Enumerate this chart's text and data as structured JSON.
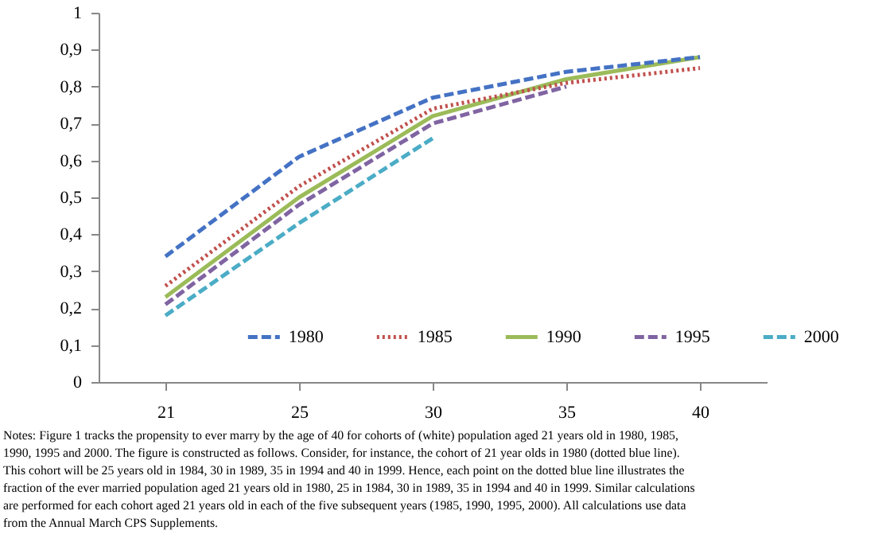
{
  "chart_data": {
    "type": "line",
    "categories": [
      "21",
      "25",
      "30",
      "35",
      "40"
    ],
    "series": [
      {
        "name": "1980",
        "color": "#4472c4",
        "line_style": "dashed",
        "values": [
          0.34,
          0.61,
          0.77,
          0.84,
          0.88
        ]
      },
      {
        "name": "1985",
        "color": "#c0504d",
        "line_style": "dotted",
        "values": [
          0.26,
          0.53,
          0.74,
          0.81,
          0.85
        ]
      },
      {
        "name": "1990",
        "color": "#9bbb59",
        "line_style": "solid",
        "values": [
          0.23,
          0.5,
          0.72,
          0.82,
          0.88
        ]
      },
      {
        "name": "1995",
        "color": "#8064a2",
        "line_style": "dashed",
        "values": [
          0.21,
          0.48,
          0.7,
          0.8,
          null
        ]
      },
      {
        "name": "2000",
        "color": "#4bacc6",
        "line_style": "dashed",
        "values": [
          0.18,
          0.43,
          0.66,
          null,
          null
        ]
      }
    ],
    "ylim": [
      0,
      1
    ],
    "yticks": [
      0,
      {
        "value": 0.1,
        "label": "0,1"
      },
      {
        "value": 0.2,
        "label": "0,2"
      },
      {
        "value": 0.3,
        "label": "0,3"
      },
      {
        "value": 0.4,
        "label": "0,4"
      },
      {
        "value": 0.5,
        "label": "0,5"
      },
      {
        "value": 0.6,
        "label": "0,6"
      },
      {
        "value": 0.7,
        "label": "0,7"
      },
      {
        "value": 0.8,
        "label": "0,8"
      },
      {
        "value": 0.9,
        "label": "0,9"
      },
      1
    ],
    "grid": false,
    "legend": "bottom",
    "marker": "none",
    "annotations": [
      "Notes: Figure 1 tracks the propensity to ever marry by the age of 40 for cohorts of (white) population aged 21 years old in 1980, 1985, 1990, 1995 and 2000. The figure is constructed as follows. Consider, for instance, the cohort of 21 year olds in 1980 (dotted blue line). This cohort will be 25 years old in 1984, 30 in 1989, 35 in 1994 and 40 in 1999. Hence, each point on the dotted blue line illustrates the fraction of the ever married population aged 21 years old in 1980, 25 in 1984, 30 in 1989, 35 in 1994 and 40 in 1999. Similar calculations are performed for each cohort aged 21 years old in each of the five subsequent years (1985, 1990, 1995, 2000). All calculations use data from the Annual March CPS Supplements."
    ]
  }
}
